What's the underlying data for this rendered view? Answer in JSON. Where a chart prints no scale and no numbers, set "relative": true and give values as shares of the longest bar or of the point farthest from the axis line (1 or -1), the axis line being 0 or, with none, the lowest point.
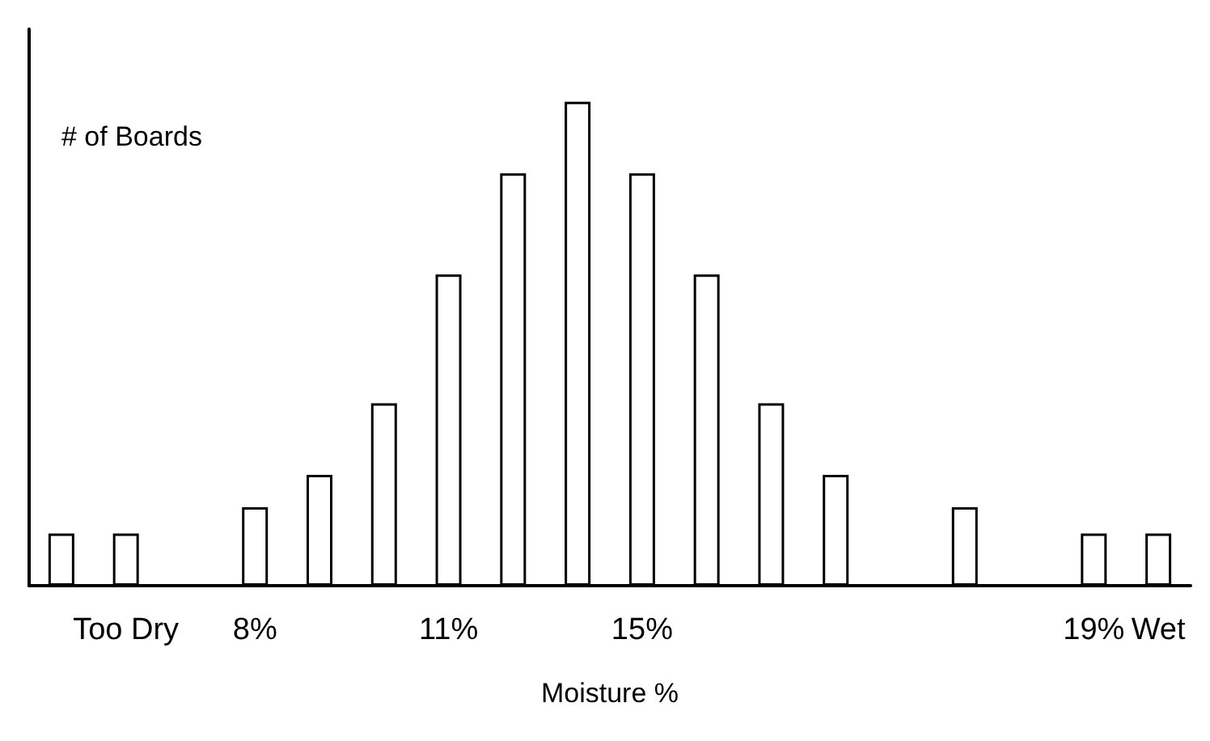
{
  "chart_data": {
    "type": "bar",
    "relative": true,
    "ylabel": "# of Boards",
    "xlabel": "Moisture %",
    "categories": [
      null,
      "Too Dry",
      null,
      "8%",
      null,
      null,
      "11%",
      null,
      null,
      "15%",
      null,
      null,
      null,
      null,
      null,
      null,
      "19%",
      "Wet"
    ],
    "values": [
      0.108,
      0.108,
      null,
      0.162,
      0.229,
      0.377,
      0.643,
      0.852,
      1,
      0.852,
      0.643,
      0.377,
      0.229,
      null,
      0.162,
      null,
      0.108,
      0.108
    ],
    "color": "#ffffff"
  }
}
